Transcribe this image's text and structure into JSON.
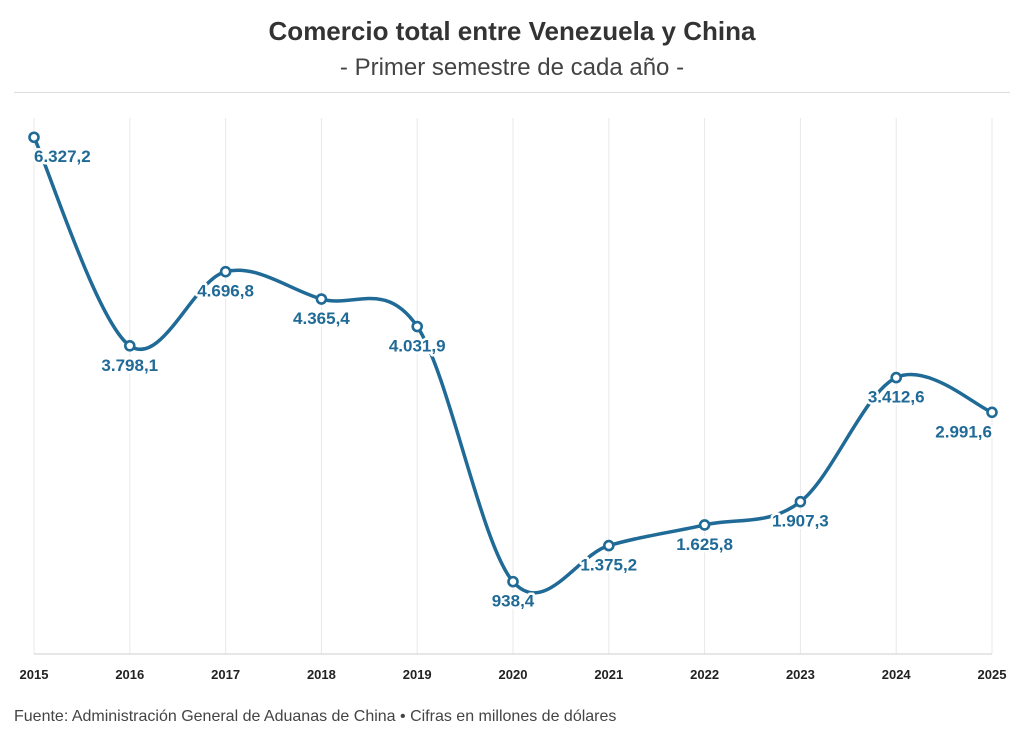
{
  "chart_data": {
    "type": "line",
    "title": "Comercio total entre Venezuela y China",
    "subtitle": "- Primer semestre de cada año -",
    "categories": [
      "2015",
      "2016",
      "2017",
      "2018",
      "2019",
      "2020",
      "2021",
      "2022",
      "2023",
      "2024",
      "2025"
    ],
    "values": [
      6327.2,
      3798.1,
      4696.8,
      4365.4,
      4031.9,
      938.4,
      1375.2,
      1625.8,
      1907.3,
      3412.6,
      2991.6
    ],
    "labels": [
      "6.327,2",
      "3.798,1",
      "4.696,8",
      "4.365,4",
      "4.031,9",
      "938,4",
      "1.375,2",
      "1.625,8",
      "1.907,3",
      "3.412,6",
      "2.991,6"
    ],
    "xlabel": "",
    "ylabel": "",
    "ylim": [
      0,
      6500
    ],
    "grid": "vertical",
    "source": "Fuente: Administración General de Aduanas de China • Cifras en millones de dólares"
  },
  "colors": {
    "line": "#1f6a96",
    "label": "#1f6a96",
    "grid": "#e8e8e8",
    "baseline": "#cccccc"
  }
}
